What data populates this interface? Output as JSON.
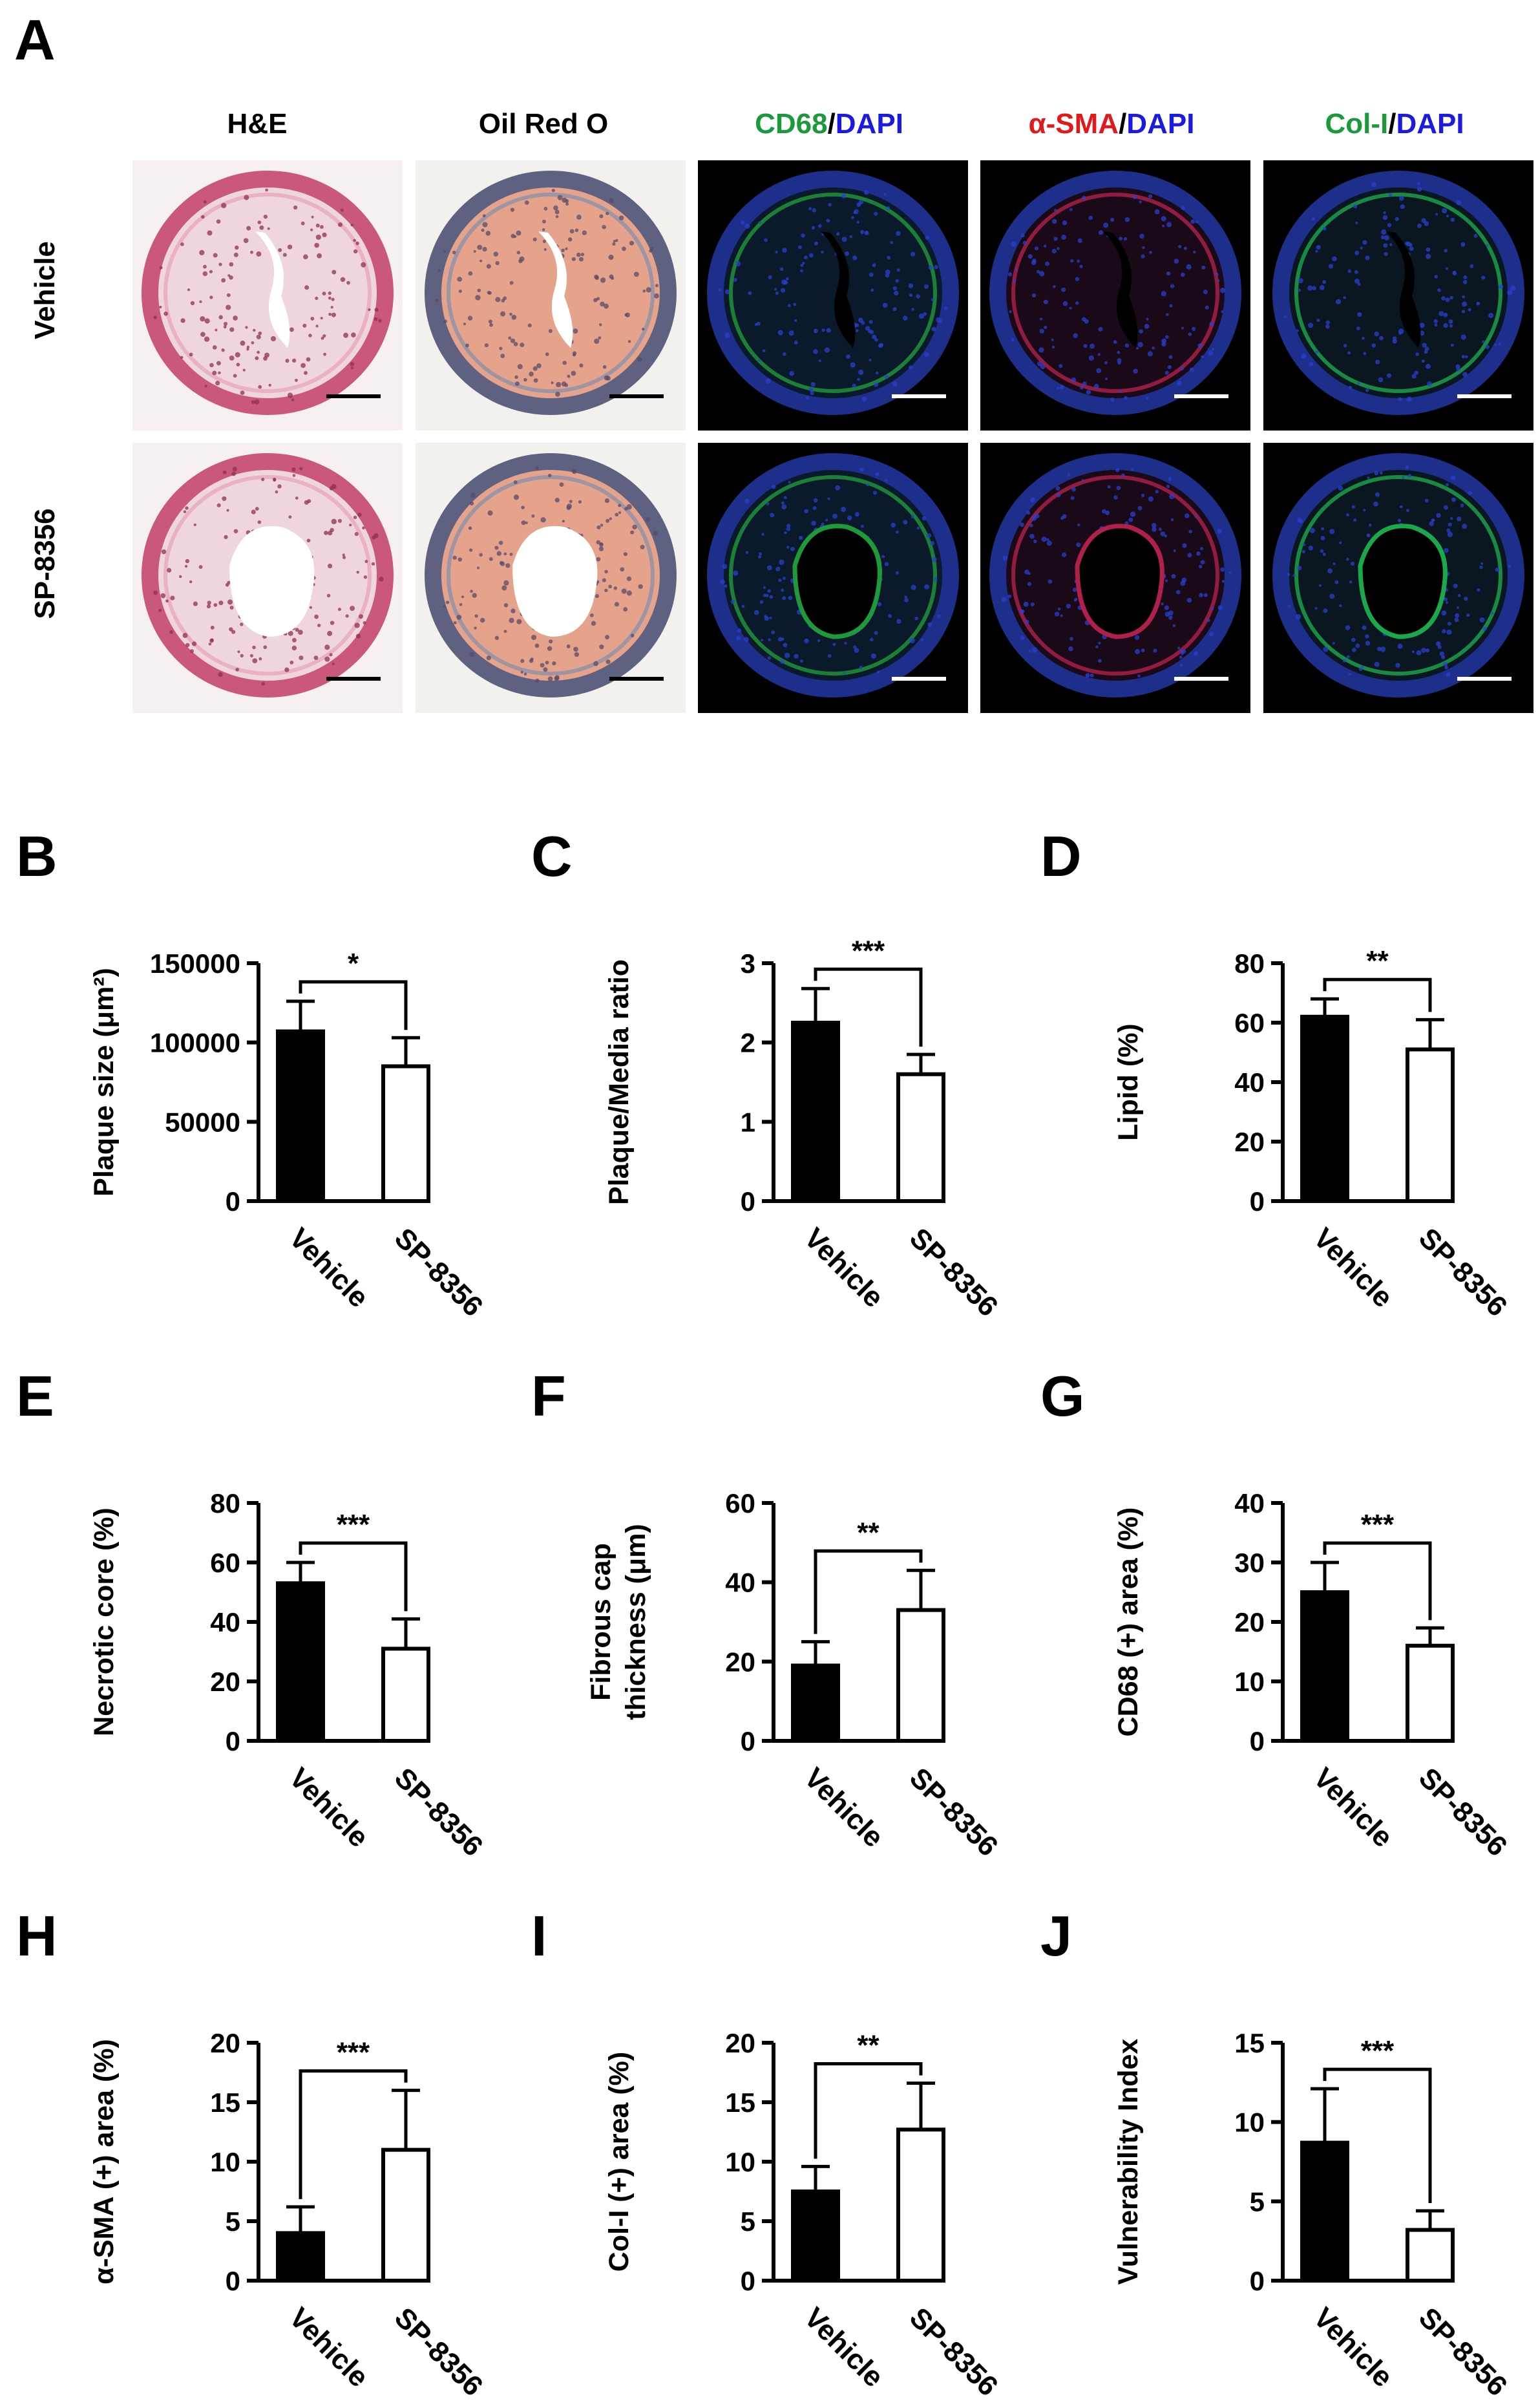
{
  "panel_a": {
    "letter": "A",
    "columns": [
      {
        "parts": [
          {
            "text": "H&E",
            "color": "#000000"
          }
        ]
      },
      {
        "parts": [
          {
            "text": "Oil Red O",
            "color": "#000000"
          }
        ]
      },
      {
        "parts": [
          {
            "text": "CD68",
            "color": "#1a9a3a"
          },
          {
            "text": "/",
            "color": "#000000"
          },
          {
            "text": "DAPI",
            "color": "#1a1ae0"
          }
        ]
      },
      {
        "parts": [
          {
            "text": "α-SMA",
            "color": "#e01a1a"
          },
          {
            "text": "/",
            "color": "#000000"
          },
          {
            "text": "DAPI",
            "color": "#1a1ae0"
          }
        ]
      },
      {
        "parts": [
          {
            "text": "Col-I",
            "color": "#1a9a3a"
          },
          {
            "text": "/",
            "color": "#000000"
          },
          {
            "text": "DAPI",
            "color": "#1a1ae0"
          }
        ]
      }
    ],
    "rows": [
      "Vehicle",
      "SP-8356"
    ]
  },
  "chart_data": [
    {
      "panel": "B",
      "type": "bar",
      "categories": [
        "Vehicle",
        "SP-8356"
      ],
      "values": [
        107000,
        85000
      ],
      "errors": [
        19000,
        18000
      ],
      "ylabel": "Plaque size (μm²)",
      "ylim": [
        0,
        150000
      ],
      "yticks": [
        "0",
        "50000",
        "100000",
        "150000"
      ],
      "significance": "*",
      "bar_colors": [
        "#000000",
        "#ffffff"
      ]
    },
    {
      "panel": "C",
      "type": "bar",
      "categories": [
        "Vehicle",
        "SP-8356"
      ],
      "values": [
        2.25,
        1.6
      ],
      "errors": [
        0.43,
        0.25
      ],
      "ylabel": "Plaque/Media ratio",
      "ylim": [
        0,
        3
      ],
      "yticks": [
        "0",
        "1",
        "2",
        "3"
      ],
      "significance": "***",
      "bar_colors": [
        "#000000",
        "#ffffff"
      ]
    },
    {
      "panel": "D",
      "type": "bar",
      "categories": [
        "Vehicle",
        "SP-8356"
      ],
      "values": [
        62,
        51
      ],
      "errors": [
        6,
        10
      ],
      "ylabel": "Lipid (%)",
      "ylim": [
        0,
        80
      ],
      "yticks": [
        "0",
        "20",
        "40",
        "60",
        "80"
      ],
      "significance": "**",
      "bar_colors": [
        "#000000",
        "#ffffff"
      ]
    },
    {
      "panel": "E",
      "type": "bar",
      "categories": [
        "Vehicle",
        "SP-8356"
      ],
      "values": [
        53,
        31
      ],
      "errors": [
        7,
        10
      ],
      "ylabel": "Necrotic core (%)",
      "ylim": [
        0,
        80
      ],
      "yticks": [
        "0",
        "20",
        "40",
        "60",
        "80"
      ],
      "significance": "***",
      "bar_colors": [
        "#000000",
        "#ffffff"
      ]
    },
    {
      "panel": "F",
      "type": "bar",
      "categories": [
        "Vehicle",
        "SP-8356"
      ],
      "values": [
        19,
        33
      ],
      "errors": [
        6,
        10
      ],
      "ylabel": "Fibrous cap thickness (μm)",
      "ylabel_lines": [
        "Fibrous cap",
        "thickness (μm)"
      ],
      "ylim": [
        0,
        60
      ],
      "yticks": [
        "0",
        "20",
        "40",
        "60"
      ],
      "significance": "**",
      "bar_colors": [
        "#000000",
        "#ffffff"
      ]
    },
    {
      "panel": "G",
      "type": "bar",
      "categories": [
        "Vehicle",
        "SP-8356"
      ],
      "values": [
        25,
        16
      ],
      "errors": [
        5,
        3
      ],
      "ylabel": "CD68 (+) area (%)",
      "ylim": [
        0,
        40
      ],
      "yticks": [
        "0",
        "10",
        "20",
        "30",
        "40"
      ],
      "significance": "***",
      "bar_colors": [
        "#000000",
        "#ffffff"
      ]
    },
    {
      "panel": "H",
      "type": "bar",
      "categories": [
        "Vehicle",
        "SP-8356"
      ],
      "values": [
        4,
        11
      ],
      "errors": [
        2.2,
        5
      ],
      "ylabel": "α-SMA (+) area (%)",
      "ylim": [
        0,
        20
      ],
      "yticks": [
        "0",
        "5",
        "10",
        "15",
        "20"
      ],
      "significance": "***",
      "bar_colors": [
        "#000000",
        "#ffffff"
      ]
    },
    {
      "panel": "I",
      "type": "bar",
      "categories": [
        "Vehicle",
        "SP-8356"
      ],
      "values": [
        7.5,
        12.7
      ],
      "errors": [
        2.1,
        3.9
      ],
      "ylabel": "Col-I (+) area (%)",
      "ylim": [
        0,
        20
      ],
      "yticks": [
        "0",
        "5",
        "10",
        "15",
        "20"
      ],
      "significance": "**",
      "bar_colors": [
        "#000000",
        "#ffffff"
      ]
    },
    {
      "panel": "J",
      "type": "bar",
      "categories": [
        "Vehicle",
        "SP-8356"
      ],
      "values": [
        8.7,
        3.2
      ],
      "errors": [
        3.4,
        1.2
      ],
      "ylabel": "Vulnerability Index",
      "ylim": [
        0,
        15
      ],
      "yticks": [
        "0",
        "5",
        "10",
        "15"
      ],
      "significance": "***",
      "bar_colors": [
        "#000000",
        "#ffffff"
      ]
    }
  ]
}
